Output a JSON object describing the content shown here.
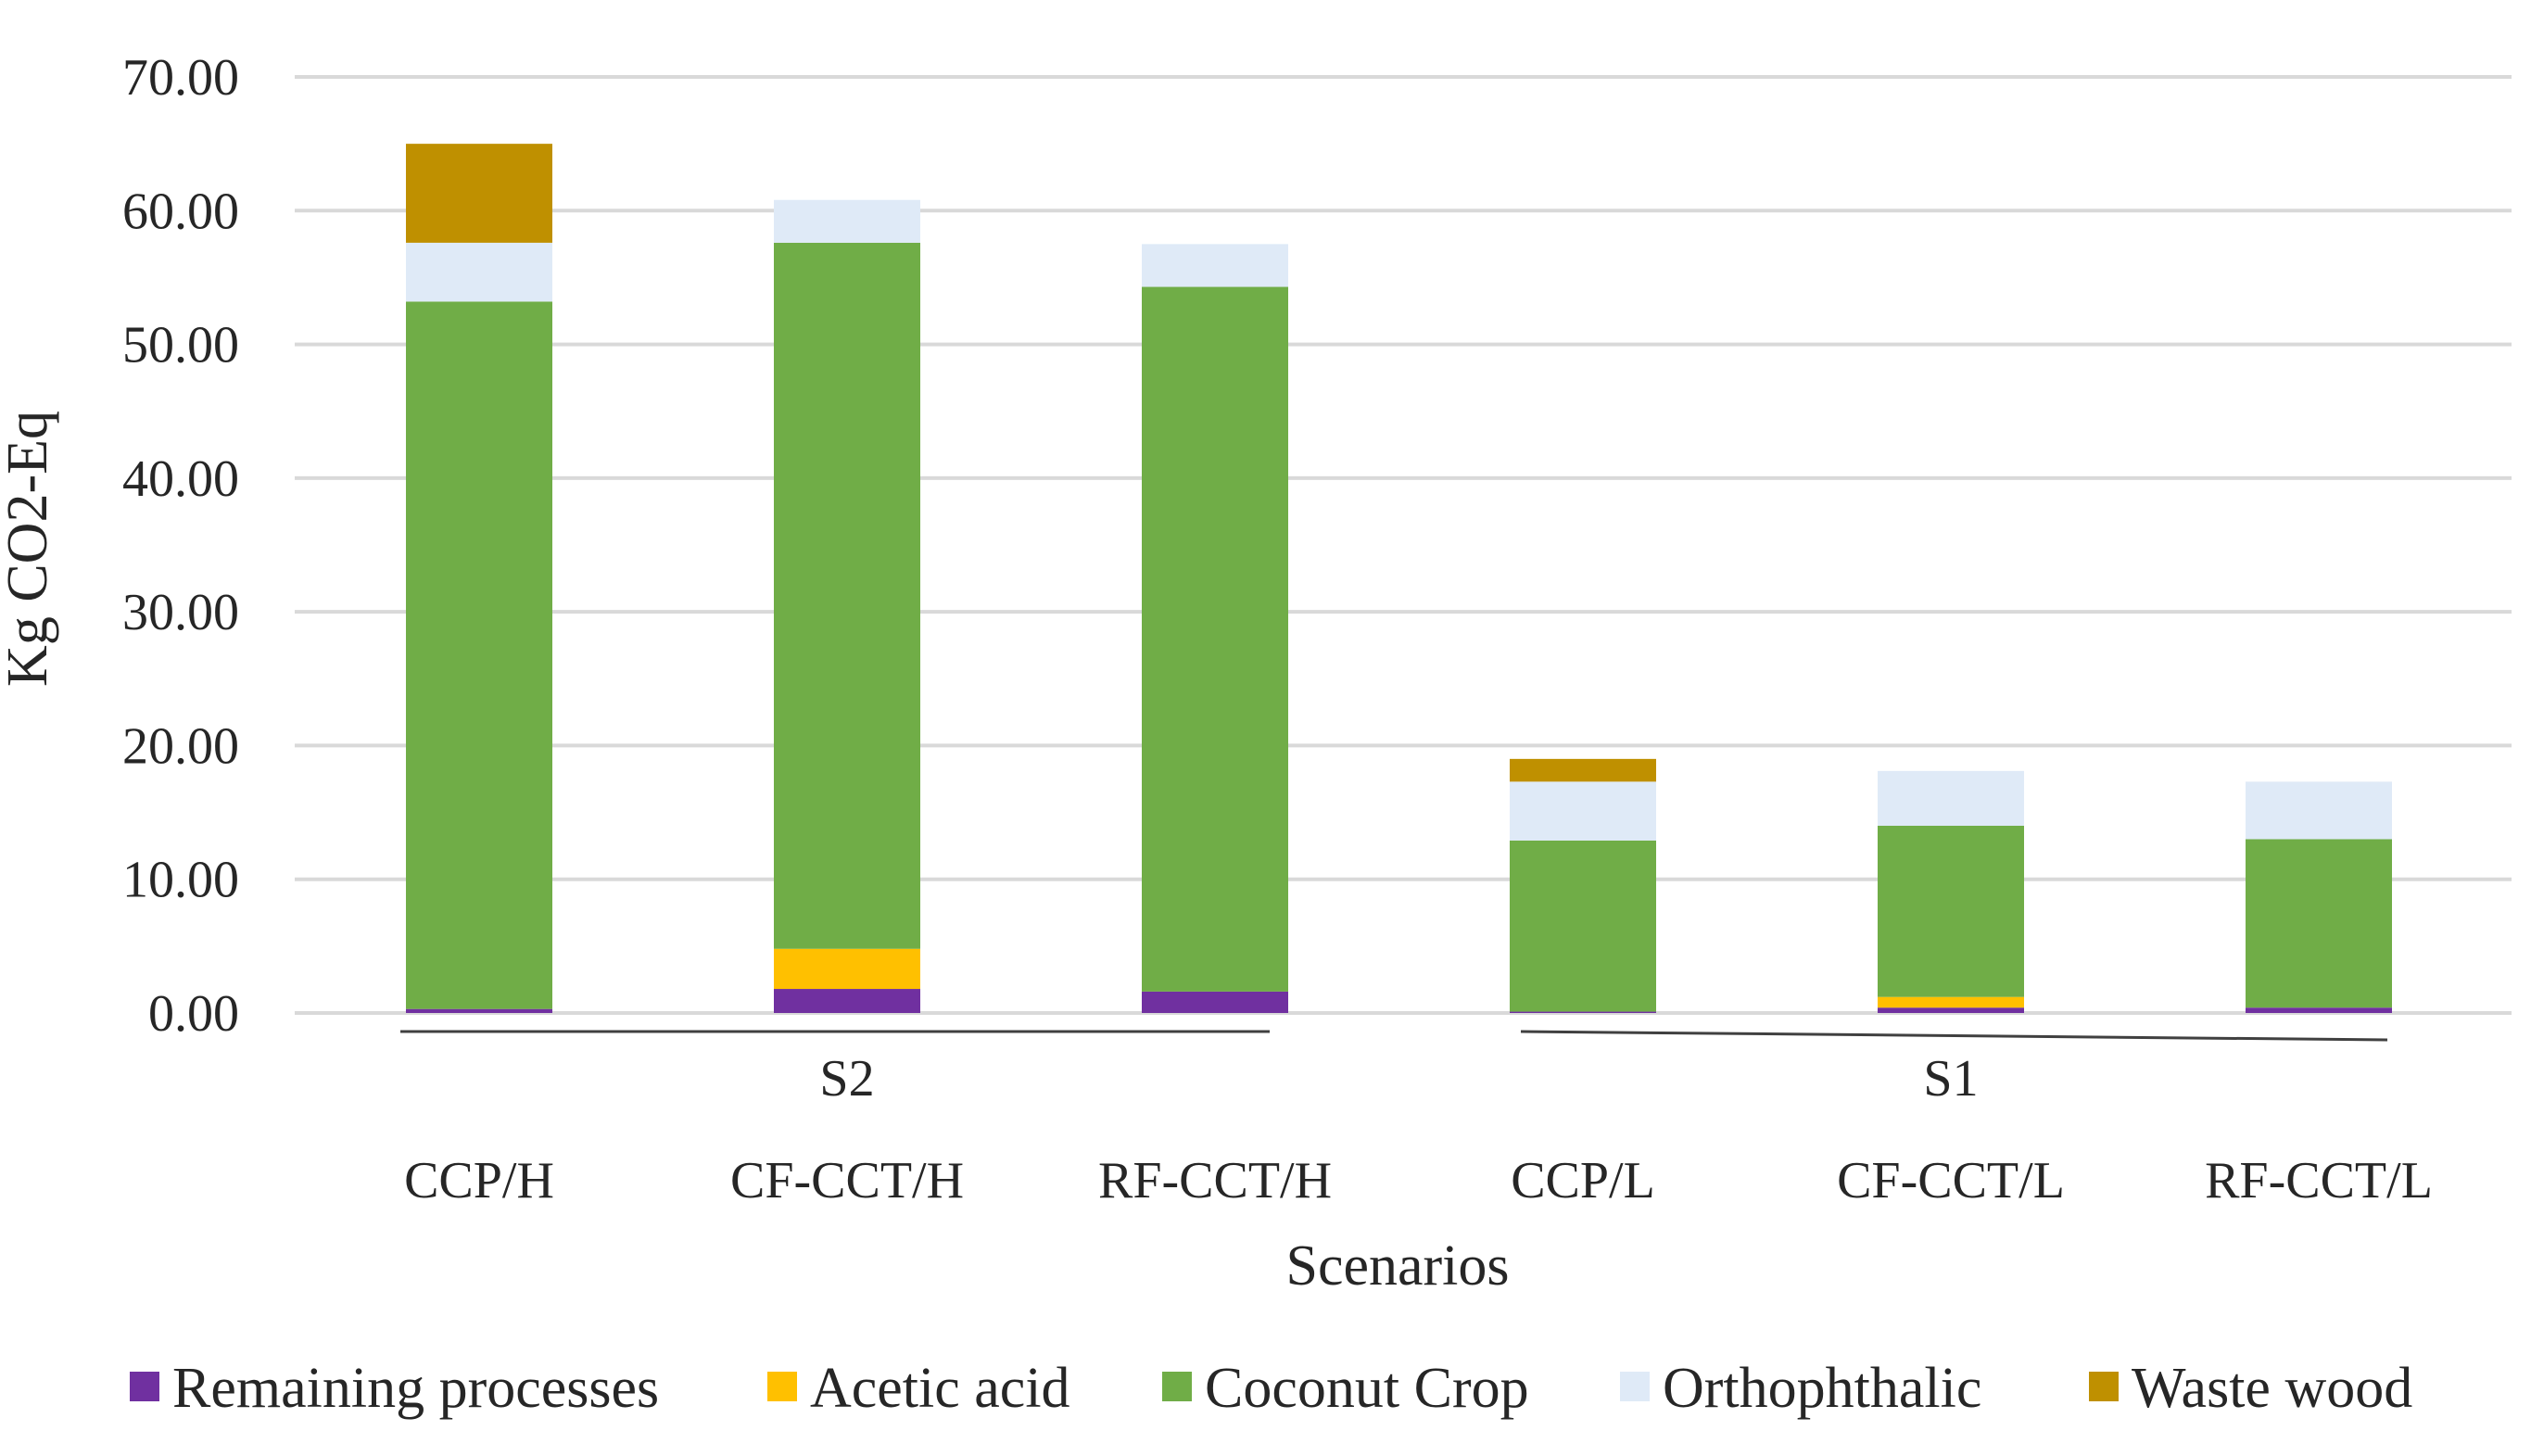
{
  "chart_data": {
    "type": "bar",
    "stacked": true,
    "title": "",
    "xlabel": "Scenarios",
    "ylabel": "Kg CO2-Eq",
    "ylim": [
      0,
      70
    ],
    "yticks": [
      "0.00",
      "10.00",
      "20.00",
      "30.00",
      "40.00",
      "50.00",
      "60.00",
      "70.00"
    ],
    "ytick_values": [
      0,
      10,
      20,
      30,
      40,
      50,
      60,
      70
    ],
    "grid": true,
    "legend_position": "bottom",
    "groups": [
      {
        "label": "S2",
        "categories": [
          "CCP/H",
          "CF-CCT/H",
          "RF-CCT/H"
        ]
      },
      {
        "label": "S1",
        "categories": [
          "CCP/L",
          "CF-CCT/L",
          "RF-CCT/L"
        ]
      }
    ],
    "categories": [
      "CCP/H",
      "CF-CCT/H",
      "RF-CCT/H",
      "CCP/L",
      "CF-CCT/L",
      "RF-CCT/L"
    ],
    "series": [
      {
        "name": "Remaining processes",
        "color": "#7030a0",
        "values": [
          0.3,
          1.8,
          1.6,
          0.1,
          0.4,
          0.4
        ]
      },
      {
        "name": "Acetic acid",
        "color": "#ffc000",
        "values": [
          0.0,
          3.0,
          0.0,
          0.0,
          0.8,
          0.0
        ]
      },
      {
        "name": "Coconut Crop",
        "color": "#70ad47",
        "values": [
          52.9,
          52.8,
          52.7,
          12.8,
          12.8,
          12.6
        ]
      },
      {
        "name": "Orthophthalic",
        "color": "#dfeaf7",
        "values": [
          4.4,
          3.2,
          3.2,
          4.4,
          4.1,
          4.3
        ]
      },
      {
        "name": "Waste wood",
        "color": "#bf9000",
        "values": [
          7.4,
          0.0,
          0.0,
          1.7,
          0.0,
          0.0
        ]
      }
    ]
  }
}
